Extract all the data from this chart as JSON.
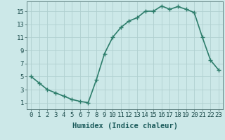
{
  "x": [
    0,
    1,
    2,
    3,
    4,
    5,
    6,
    7,
    8,
    9,
    10,
    11,
    12,
    13,
    14,
    15,
    16,
    17,
    18,
    19,
    20,
    21,
    22,
    23
  ],
  "y": [
    5,
    4,
    3,
    2.5,
    2,
    1.5,
    1.2,
    1,
    4.5,
    8.5,
    11,
    12.5,
    13.5,
    14,
    15,
    15,
    15.8,
    15.3,
    15.7,
    15.3,
    14.8,
    11,
    7.5,
    6
  ],
  "xlabel": "Humidex (Indice chaleur)",
  "line_color": "#2d7d6b",
  "marker": "+",
  "marker_size": 4,
  "marker_edge_width": 1.0,
  "background_color": "#cce8e8",
  "grid_color": "#b0d0d0",
  "xlim": [
    -0.5,
    23.5
  ],
  "ylim": [
    0,
    16.5
  ],
  "xticks": [
    0,
    1,
    2,
    3,
    4,
    5,
    6,
    7,
    8,
    9,
    10,
    11,
    12,
    13,
    14,
    15,
    16,
    17,
    18,
    19,
    20,
    21,
    22,
    23
  ],
  "yticks": [
    1,
    3,
    5,
    7,
    9,
    11,
    13,
    15
  ],
  "xlabel_fontsize": 7.5,
  "tick_fontsize": 6.5,
  "linewidth": 1.2,
  "fig_width": 3.2,
  "fig_height": 2.0,
  "dpi": 100
}
